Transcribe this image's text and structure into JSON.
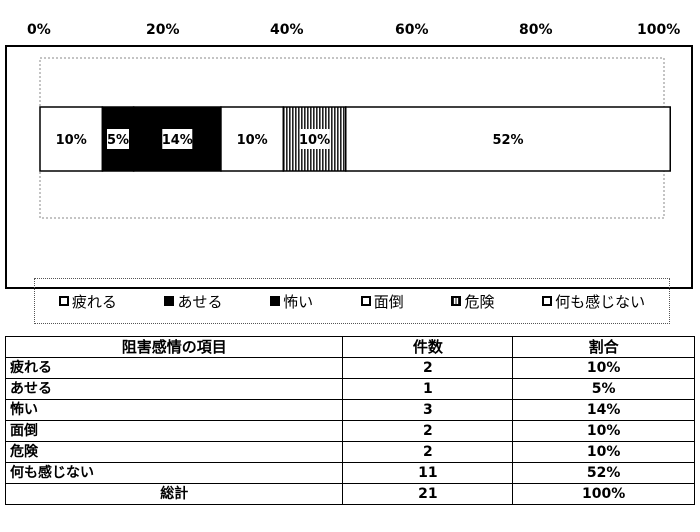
{
  "chart_data": {
    "type": "bar",
    "orientation": "horizontal-stacked-100",
    "x_ticks": [
      "0%",
      "20%",
      "40%",
      "60%",
      "80%",
      "100%"
    ],
    "xlim": [
      0,
      100
    ],
    "series": [
      {
        "name": "疲れる",
        "value": 10,
        "label": "10%",
        "fill": "white"
      },
      {
        "name": "あせる",
        "value": 5,
        "label": "5%",
        "fill": "black"
      },
      {
        "name": "怖い",
        "value": 14,
        "label": "14%",
        "fill": "black"
      },
      {
        "name": "面倒",
        "value": 10,
        "label": "10%",
        "fill": "white"
      },
      {
        "name": "危険",
        "value": 10,
        "label": "10%",
        "fill": "hatched"
      },
      {
        "name": "何も感じない",
        "value": 52,
        "label": "52%",
        "fill": "white"
      }
    ],
    "legend_position": "bottom",
    "grid": false
  },
  "table": {
    "headers": [
      "阻害感情の項目",
      "件数",
      "割合"
    ],
    "rows": [
      {
        "item": "疲れる",
        "count": "2",
        "ratio": "10%"
      },
      {
        "item": "あせる",
        "count": "1",
        "ratio": "5%"
      },
      {
        "item": "怖い",
        "count": "3",
        "ratio": "14%"
      },
      {
        "item": "面倒",
        "count": "2",
        "ratio": "10%"
      },
      {
        "item": "危険",
        "count": "2",
        "ratio": "10%"
      },
      {
        "item": "何も感じない",
        "count": "11",
        "ratio": "52%"
      }
    ],
    "total": {
      "item": "総計",
      "count": "21",
      "ratio": "100%"
    }
  }
}
